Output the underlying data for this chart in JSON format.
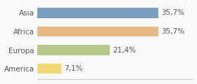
{
  "categories": [
    "Asia",
    "Africa",
    "Europa",
    "America"
  ],
  "values": [
    35.7,
    35.7,
    21.4,
    7.1
  ],
  "labels": [
    "35,7%",
    "35,7%",
    "21,4%",
    "7,1%"
  ],
  "bar_colors": [
    "#7a9fc2",
    "#e8b882",
    "#b5c98a",
    "#f0d875"
  ],
  "background_color": "#f9f9f9",
  "xlim": [
    0,
    46
  ],
  "bar_height": 0.55,
  "fontsize": 7.5
}
